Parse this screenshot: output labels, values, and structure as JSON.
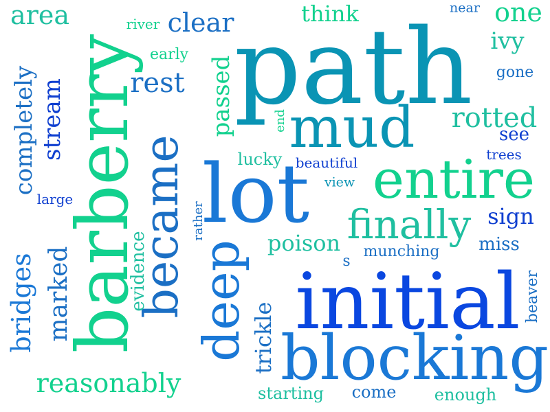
{
  "words": {
    "path": "path",
    "barberry": "barberry",
    "initial": "initial",
    "blocking": "blocking",
    "lot": "lot",
    "entire": "entire",
    "mud": "mud",
    "became": "became",
    "deep": "deep",
    "finally": "finally",
    "area": "area",
    "clear": "clear",
    "river": "river",
    "think": "think",
    "near": "near",
    "one": "one",
    "ivy": "ivy",
    "early": "early",
    "rest": "rest",
    "passed": "passed",
    "gone": "gone",
    "rotted": "rotted",
    "end": "end",
    "see": "see",
    "completely": "completely",
    "stream": "stream",
    "lucky": "lucky",
    "beautiful": "beautiful",
    "trees": "trees",
    "view": "view",
    "large": "large",
    "rather": "rather",
    "sign": "sign",
    "poison": "poison",
    "miss": "miss",
    "munching": "munching",
    "s": "s",
    "evidence": "evidence",
    "marked": "marked",
    "bridges": "bridges",
    "beaver": "beaver",
    "trickle": "trickle",
    "reasonably": "reasonably",
    "starting": "starting",
    "come": "come",
    "enough": "enough"
  }
}
